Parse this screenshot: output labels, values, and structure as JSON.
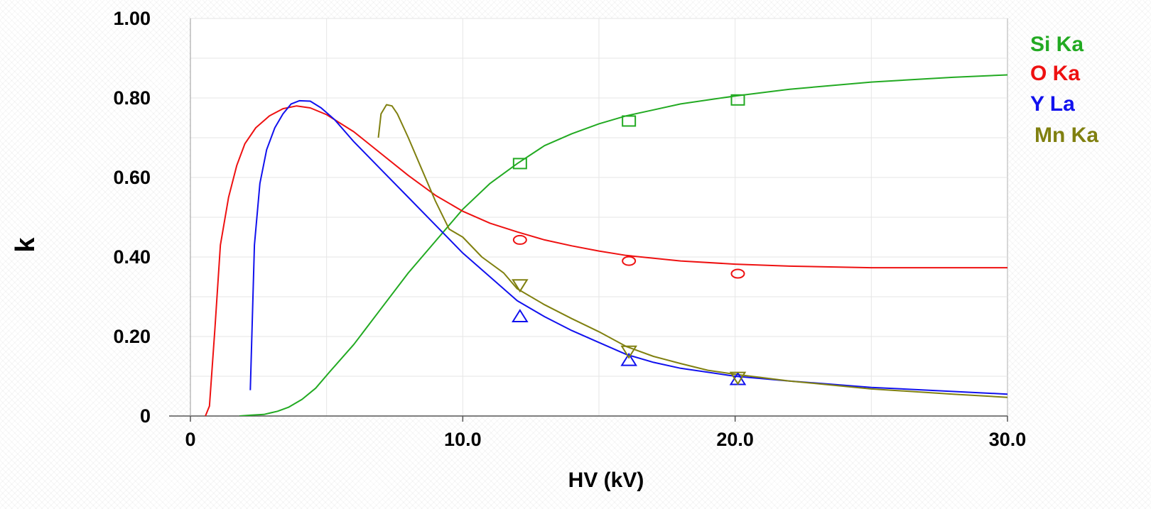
{
  "chart_data": {
    "type": "line",
    "xlabel": "HV (kV)",
    "ylabel": "k",
    "xlim": [
      0,
      30
    ],
    "ylim": [
      0,
      1
    ],
    "x_ticks": [
      0,
      10,
      20,
      30
    ],
    "x_tick_labels": [
      "0",
      "10.0",
      "20.0",
      "30.0"
    ],
    "y_ticks": [
      0,
      0.2,
      0.4,
      0.6,
      0.8,
      1.0
    ],
    "y_tick_labels": [
      "0",
      "0.20",
      "0.40",
      "0.60",
      "0.80",
      "1.00"
    ],
    "grid": true,
    "legend_position": "right",
    "series": [
      {
        "name": "Si Ka",
        "color": "#22aa22",
        "marker": "square",
        "line": [
          [
            1.8,
            0
          ],
          [
            2.2,
            0.002
          ],
          [
            2.7,
            0.004
          ],
          [
            3.2,
            0.012
          ],
          [
            3.6,
            0.022
          ],
          [
            4.1,
            0.042
          ],
          [
            4.6,
            0.07
          ],
          [
            5.1,
            0.11
          ],
          [
            6.0,
            0.18
          ],
          [
            7.0,
            0.27
          ],
          [
            8.0,
            0.36
          ],
          [
            9.0,
            0.44
          ],
          [
            10.0,
            0.52
          ],
          [
            11.0,
            0.585
          ],
          [
            12.0,
            0.635
          ],
          [
            13.0,
            0.68
          ],
          [
            14.0,
            0.71
          ],
          [
            15.0,
            0.735
          ],
          [
            16.0,
            0.755
          ],
          [
            17.0,
            0.77
          ],
          [
            18.0,
            0.785
          ],
          [
            20.0,
            0.805
          ],
          [
            22.0,
            0.822
          ],
          [
            25.0,
            0.84
          ],
          [
            28.0,
            0.852
          ],
          [
            30.0,
            0.858
          ]
        ],
        "points": [
          [
            12.1,
            0.635
          ],
          [
            16.1,
            0.742
          ],
          [
            20.1,
            0.795
          ]
        ]
      },
      {
        "name": "O Ka",
        "color": "#ee1111",
        "marker": "circle",
        "line": [
          [
            0.55,
            0
          ],
          [
            0.7,
            0.025
          ],
          [
            0.9,
            0.22
          ],
          [
            1.1,
            0.43
          ],
          [
            1.4,
            0.55
          ],
          [
            1.7,
            0.63
          ],
          [
            2.0,
            0.685
          ],
          [
            2.4,
            0.725
          ],
          [
            2.9,
            0.755
          ],
          [
            3.4,
            0.773
          ],
          [
            3.9,
            0.78
          ],
          [
            4.4,
            0.775
          ],
          [
            5.0,
            0.758
          ],
          [
            6.0,
            0.715
          ],
          [
            7.0,
            0.66
          ],
          [
            8.0,
            0.605
          ],
          [
            9.0,
            0.555
          ],
          [
            10.0,
            0.515
          ],
          [
            11.0,
            0.485
          ],
          [
            12.0,
            0.463
          ],
          [
            13.0,
            0.443
          ],
          [
            14.0,
            0.428
          ],
          [
            15.0,
            0.415
          ],
          [
            16.0,
            0.404
          ],
          [
            18.0,
            0.39
          ],
          [
            20.0,
            0.382
          ],
          [
            22.0,
            0.377
          ],
          [
            25.0,
            0.373
          ],
          [
            30.0,
            0.373
          ]
        ],
        "points": [
          [
            12.1,
            0.443
          ],
          [
            16.1,
            0.39
          ],
          [
            20.1,
            0.358
          ]
        ]
      },
      {
        "name": "Y La",
        "color": "#1111ee",
        "marker": "triangle-up",
        "line": [
          [
            2.2,
            0.065
          ],
          [
            2.35,
            0.43
          ],
          [
            2.55,
            0.585
          ],
          [
            2.8,
            0.67
          ],
          [
            3.1,
            0.725
          ],
          [
            3.4,
            0.76
          ],
          [
            3.7,
            0.785
          ],
          [
            4.0,
            0.793
          ],
          [
            4.4,
            0.792
          ],
          [
            4.8,
            0.775
          ],
          [
            5.3,
            0.745
          ],
          [
            6.0,
            0.69
          ],
          [
            7.0,
            0.62
          ],
          [
            8.0,
            0.55
          ],
          [
            9.0,
            0.48
          ],
          [
            10.0,
            0.41
          ],
          [
            11.0,
            0.35
          ],
          [
            12.0,
            0.29
          ],
          [
            13.0,
            0.25
          ],
          [
            14.0,
            0.215
          ],
          [
            15.0,
            0.185
          ],
          [
            16.0,
            0.155
          ],
          [
            17.0,
            0.135
          ],
          [
            18.0,
            0.12
          ],
          [
            20.0,
            0.1
          ],
          [
            22.0,
            0.088
          ],
          [
            25.0,
            0.072
          ],
          [
            30.0,
            0.055
          ]
        ],
        "points": [
          [
            12.1,
            0.25
          ],
          [
            16.1,
            0.14
          ],
          [
            20.1,
            0.092
          ]
        ]
      },
      {
        "name": "Mn Ka",
        "color": "#808010",
        "marker": "triangle-down",
        "line": [
          [
            6.9,
            0.7
          ],
          [
            7.0,
            0.76
          ],
          [
            7.2,
            0.783
          ],
          [
            7.4,
            0.78
          ],
          [
            7.6,
            0.76
          ],
          [
            8.0,
            0.7
          ],
          [
            8.5,
            0.62
          ],
          [
            9.0,
            0.54
          ],
          [
            9.5,
            0.47
          ],
          [
            10.0,
            0.45
          ],
          [
            10.7,
            0.4
          ],
          [
            11.5,
            0.36
          ],
          [
            12.0,
            0.32
          ],
          [
            13.0,
            0.28
          ],
          [
            14.0,
            0.245
          ],
          [
            15.0,
            0.212
          ],
          [
            16.0,
            0.175
          ],
          [
            17.0,
            0.15
          ],
          [
            18.0,
            0.132
          ],
          [
            19.0,
            0.115
          ],
          [
            20.0,
            0.105
          ],
          [
            22.0,
            0.088
          ],
          [
            25.0,
            0.068
          ],
          [
            28.0,
            0.055
          ],
          [
            30.0,
            0.047
          ]
        ],
        "points": [
          [
            12.1,
            0.33
          ],
          [
            16.1,
            0.163
          ],
          [
            20.1,
            0.097
          ]
        ]
      }
    ]
  }
}
